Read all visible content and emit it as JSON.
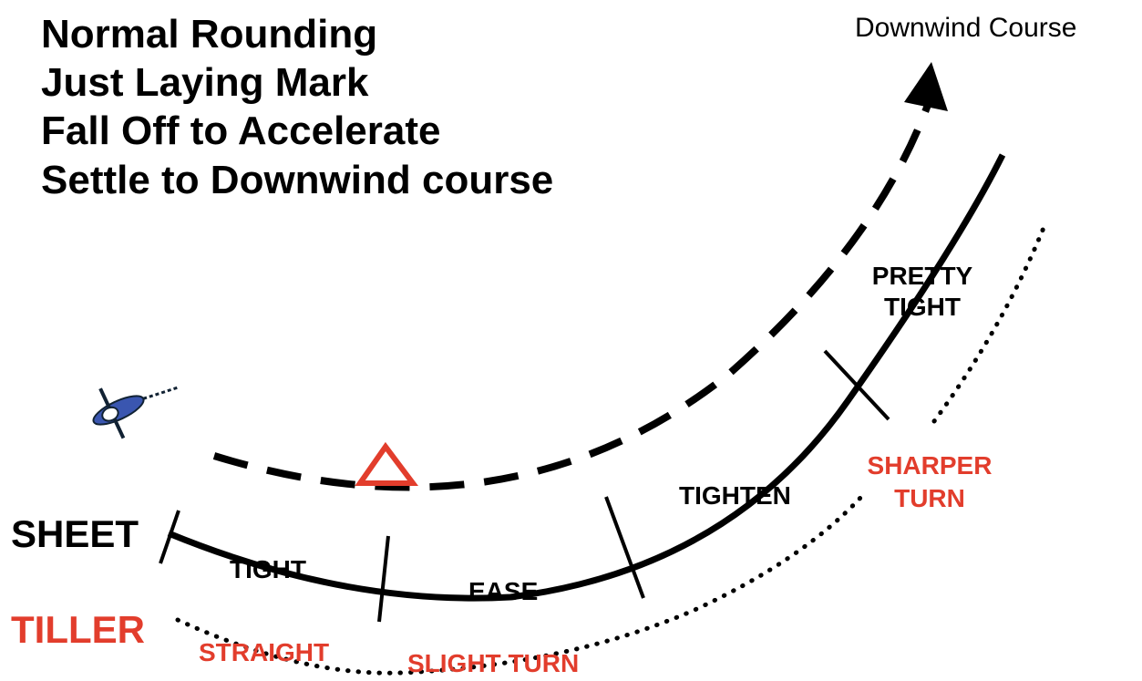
{
  "title_lines": [
    "Normal Rounding",
    "Just Laying Mark",
    "Fall Off to Accelerate",
    "Settle to Downwind course"
  ],
  "course_label": "Downwind Course",
  "sheet": {
    "label": "SHEET",
    "phases": [
      {
        "lines": [
          "TIGHT"
        ]
      },
      {
        "lines": [
          "EASE"
        ]
      },
      {
        "lines": [
          "TIGHTEN"
        ]
      },
      {
        "lines": [
          "PRETTY",
          "TIGHT"
        ]
      }
    ]
  },
  "tiller": {
    "label": "TILLER",
    "phases": [
      {
        "lines": [
          "STRAIGHT"
        ]
      },
      {
        "lines": [
          "SLIGHT TURN"
        ]
      },
      {
        "lines": [
          "SHARPER",
          "TURN"
        ]
      }
    ]
  }
}
